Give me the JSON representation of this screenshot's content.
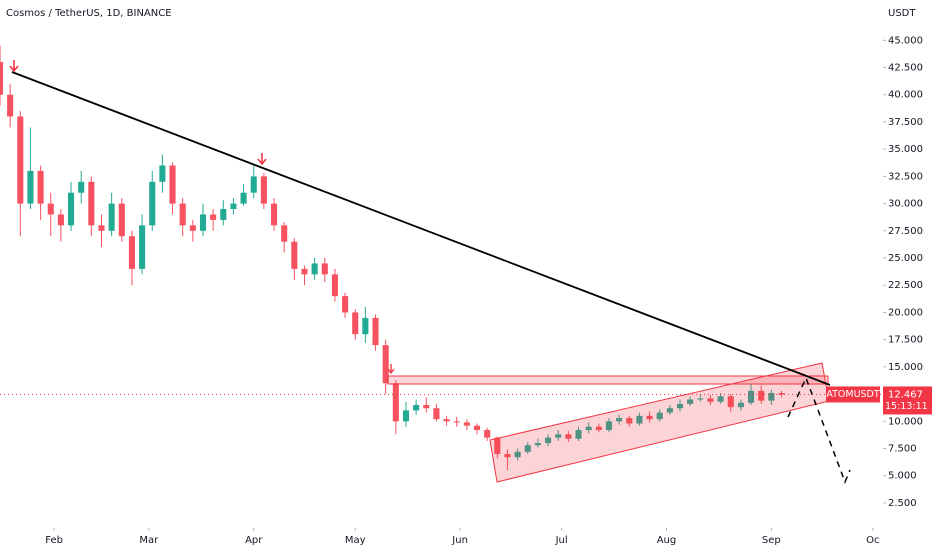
{
  "chart_data": {
    "type": "candlestick",
    "title": "Cosmos / TetherUS, 1D, BINANCE",
    "y_unit": "USDT",
    "symbol": "ATOMUSDT",
    "last_price": 12.467,
    "countdown": "15:13:11",
    "up_color": "#22ab94",
    "down_color": "#f7525f",
    "x": [
      -16,
      -13,
      -10,
      -7,
      -4,
      -1,
      2,
      5,
      8,
      11,
      14,
      17,
      20,
      23,
      26,
      29,
      32,
      35,
      38,
      41,
      44,
      47,
      50,
      53,
      56,
      59,
      62,
      65,
      68,
      71,
      74,
      77,
      80,
      83,
      86,
      89,
      92,
      95,
      98,
      101,
      104,
      107,
      110,
      113,
      116,
      119,
      122,
      125,
      128,
      131,
      134,
      137,
      140,
      143,
      146,
      149,
      152,
      155,
      158,
      161,
      164,
      167,
      170,
      173,
      176,
      179,
      182,
      185,
      188,
      191,
      194,
      197,
      200,
      203,
      206,
      209,
      212,
      215
    ],
    "open": [
      43,
      40,
      38,
      30,
      33,
      30,
      29,
      28,
      31,
      32,
      28,
      27.5,
      30,
      27,
      24,
      28,
      32,
      33.5,
      30,
      28,
      27.5,
      29,
      28.5,
      29.5,
      30,
      31,
      32.5,
      30,
      28,
      26.5,
      24,
      23.5,
      24.5,
      23.5,
      21.5,
      20,
      18,
      19.5,
      17,
      13.5,
      10,
      11,
      11.5,
      11.2,
      10.2,
      10,
      9.9,
      9.6,
      9.2,
      8.5,
      7,
      6.7,
      7.2,
      7.8,
      8,
      8.5,
      8.8,
      8.4,
      9.2,
      9.5,
      9.2,
      10,
      10.3,
      9.8,
      10.5,
      10.2,
      10.8,
      11.2,
      11.6,
      12,
      12.1,
      11.8,
      12.3,
      11.3,
      11.7,
      12.8,
      11.9,
      12.6
    ],
    "high": [
      44.5,
      41,
      38.5,
      37,
      33.5,
      31,
      29.5,
      32,
      33,
      32.5,
      29,
      31,
      30.5,
      27.5,
      29,
      33,
      34.5,
      33.8,
      30.5,
      28.5,
      30,
      29.5,
      30.3,
      30.5,
      31.8,
      33.5,
      32.8,
      30.5,
      28.3,
      26.8,
      24.3,
      25,
      25,
      24,
      21.8,
      20.3,
      20.5,
      19.8,
      17.5,
      13.8,
      11.8,
      12,
      12.2,
      11.6,
      10.5,
      10.4,
      10.2,
      9.8,
      9.4,
      8.6,
      7.4,
      7.5,
      8.1,
      8.4,
      8.8,
      9.2,
      9.1,
      9.5,
      9.9,
      9.8,
      10.3,
      10.6,
      10.5,
      10.8,
      10.9,
      11.1,
      11.5,
      12,
      12.3,
      12.5,
      12.4,
      12.6,
      12.5,
      12,
      13.4,
      13.3,
      12.9,
      12.8
    ],
    "low": [
      39,
      37,
      27,
      29.5,
      28.5,
      27,
      26.5,
      27.5,
      30,
      27,
      26,
      27,
      26.5,
      22.5,
      23.5,
      27.5,
      31,
      29,
      27,
      26.5,
      27,
      27.5,
      28,
      29,
      29.8,
      30.5,
      29.5,
      27.5,
      25.5,
      23,
      22.5,
      23,
      22.8,
      21,
      19.5,
      17.5,
      17.2,
      16.5,
      12.5,
      8.8,
      9.5,
      10.6,
      10.8,
      10,
      9.6,
      9.5,
      9.2,
      8.8,
      8.2,
      6.6,
      5.5,
      6.4,
      7,
      7.6,
      7.7,
      8.2,
      8.1,
      8.2,
      8.9,
      9,
      9,
      9.7,
      9.5,
      9.6,
      9.9,
      10,
      10.6,
      10.9,
      11.4,
      11.8,
      11.5,
      11.6,
      10.9,
      11,
      11.5,
      11.6,
      11.5,
      12.2
    ],
    "close": [
      40,
      38,
      30,
      33,
      30,
      29,
      28,
      31,
      32,
      28,
      27.5,
      30,
      27,
      24,
      28,
      32,
      33.5,
      30,
      28,
      27.5,
      29,
      28.5,
      29.5,
      30,
      31,
      32.5,
      30,
      28,
      26.5,
      24,
      23.5,
      24.5,
      23.5,
      21.5,
      20,
      18,
      19.5,
      17,
      13.5,
      10,
      11,
      11.5,
      11.2,
      10.2,
      10,
      9.9,
      9.6,
      9.2,
      8.5,
      7,
      6.7,
      7.2,
      7.8,
      8,
      8.5,
      8.8,
      8.4,
      9.2,
      9.5,
      9.2,
      10,
      10.3,
      9.8,
      10.5,
      10.2,
      10.8,
      11.2,
      11.6,
      12,
      12.1,
      11.8,
      12.3,
      11.3,
      11.7,
      12.8,
      11.9,
      12.6,
      12.467
    ],
    "xlim": [
      -16,
      245
    ],
    "xticks": [
      {
        "value": 0,
        "label": "Feb"
      },
      {
        "value": 28,
        "label": "Mar"
      },
      {
        "value": 59,
        "label": "Apr"
      },
      {
        "value": 89,
        "label": "May"
      },
      {
        "value": 120,
        "label": "Jun"
      },
      {
        "value": 150,
        "label": "Jul"
      },
      {
        "value": 181,
        "label": "Aug"
      },
      {
        "value": 212,
        "label": "Sep"
      },
      {
        "value": 242,
        "label": "Oc"
      }
    ],
    "ylim": [
      0.2,
      48.7
    ],
    "yticks": [
      {
        "value": 2.5,
        "label": "2.500"
      },
      {
        "value": 5,
        "label": "5.000"
      },
      {
        "value": 7.5,
        "label": "7.500"
      },
      {
        "value": 10,
        "label": "10.000"
      },
      {
        "value": 12.5,
        "label": "12.500"
      },
      {
        "value": 15,
        "label": "15.000"
      },
      {
        "value": 17.5,
        "label": "17.500"
      },
      {
        "value": 20,
        "label": "20.000"
      },
      {
        "value": 22.5,
        "label": "22.500"
      },
      {
        "value": 25,
        "label": "25.000"
      },
      {
        "value": 27.5,
        "label": "27.500"
      },
      {
        "value": 30,
        "label": "30.000"
      },
      {
        "value": 32.5,
        "label": "32.500"
      },
      {
        "value": 35,
        "label": "35.000"
      },
      {
        "value": 37.5,
        "label": "37.500"
      },
      {
        "value": 40,
        "label": "40.000"
      },
      {
        "value": 42.5,
        "label": "42.500"
      },
      {
        "value": 45,
        "label": "45.000"
      }
    ],
    "grid": false
  }
}
